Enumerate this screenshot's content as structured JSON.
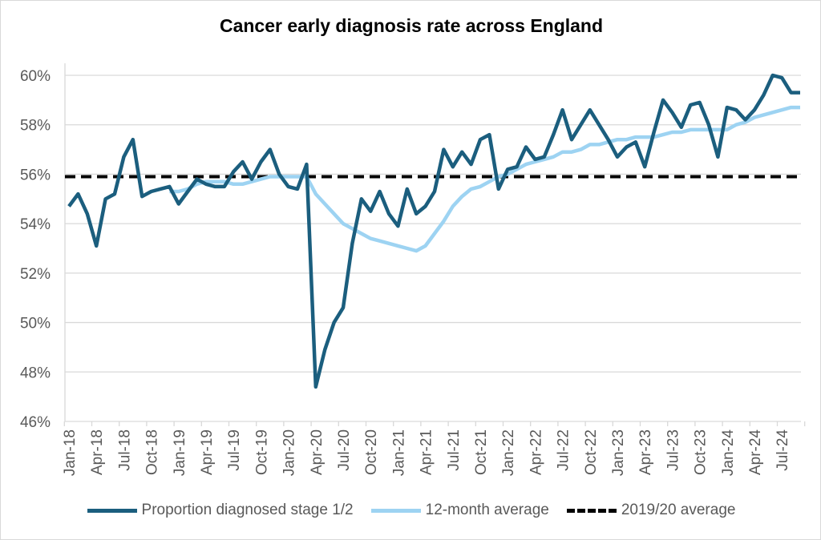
{
  "chart_data": {
    "type": "line",
    "title": "Cancer early diagnosis rate across England",
    "xlabel": "",
    "ylabel": "",
    "ylim": [
      46,
      60
    ],
    "yticks": [
      "46%",
      "48%",
      "50%",
      "52%",
      "54%",
      "56%",
      "58%",
      "60%"
    ],
    "ytick_values": [
      46,
      48,
      50,
      52,
      54,
      56,
      58,
      60
    ],
    "grid": true,
    "legend_position": "bottom",
    "x": [
      "Jan-18",
      "Feb-18",
      "Mar-18",
      "Apr-18",
      "May-18",
      "Jun-18",
      "Jul-18",
      "Aug-18",
      "Sep-18",
      "Oct-18",
      "Nov-18",
      "Dec-18",
      "Jan-19",
      "Feb-19",
      "Mar-19",
      "Apr-19",
      "May-19",
      "Jun-19",
      "Jul-19",
      "Aug-19",
      "Sep-19",
      "Oct-19",
      "Nov-19",
      "Dec-19",
      "Jan-20",
      "Feb-20",
      "Mar-20",
      "Apr-20",
      "May-20",
      "Jun-20",
      "Jul-20",
      "Aug-20",
      "Sep-20",
      "Oct-20",
      "Nov-20",
      "Dec-20",
      "Jan-21",
      "Feb-21",
      "Mar-21",
      "Apr-21",
      "May-21",
      "Jun-21",
      "Jul-21",
      "Aug-21",
      "Sep-21",
      "Oct-21",
      "Nov-21",
      "Dec-21",
      "Jan-22",
      "Feb-22",
      "Mar-22",
      "Apr-22",
      "May-22",
      "Jun-22",
      "Jul-22",
      "Aug-22",
      "Sep-22",
      "Oct-22",
      "Nov-22",
      "Dec-22",
      "Jan-23",
      "Feb-23",
      "Mar-23",
      "Apr-23",
      "May-23",
      "Jun-23",
      "Jul-23",
      "Aug-23",
      "Sep-23",
      "Oct-23",
      "Nov-23",
      "Dec-23",
      "Jan-24",
      "Feb-24",
      "Mar-24",
      "Apr-24",
      "May-24",
      "Jun-24",
      "Jul-24",
      "Aug-24",
      "Sep-24"
    ],
    "xtick_labels": [
      "Jan-18",
      "Apr-18",
      "Jul-18",
      "Oct-18",
      "Jan-19",
      "Apr-19",
      "Jul-19",
      "Oct-19",
      "Jan-20",
      "Apr-20",
      "Jul-20",
      "Oct-20",
      "Jan-21",
      "Apr-21",
      "Jul-21",
      "Oct-21",
      "Jan-22",
      "Apr-22",
      "Jul-22",
      "Oct-22",
      "Jan-23",
      "Apr-23",
      "Jul-23",
      "Oct-23",
      "Jan-24",
      "Apr-24",
      "Jul-24"
    ],
    "series": [
      {
        "name": "Proportion diagnosed stage 1/2",
        "color": "#1b5e7e",
        "dash": false,
        "values": [
          54.7,
          55.2,
          54.4,
          53.1,
          55.0,
          55.2,
          56.7,
          57.4,
          55.1,
          55.3,
          55.4,
          55.5,
          54.8,
          55.3,
          55.8,
          55.6,
          55.5,
          55.5,
          56.1,
          56.5,
          55.8,
          56.5,
          57.0,
          56.0,
          55.5,
          55.4,
          56.4,
          47.4,
          48.9,
          50.0,
          50.6,
          53.2,
          55.0,
          54.5,
          55.3,
          54.4,
          53.9,
          55.4,
          54.4,
          54.7,
          55.3,
          57.0,
          56.3,
          56.9,
          56.4,
          57.4,
          57.6,
          55.4,
          56.2,
          56.3,
          57.1,
          56.6,
          56.7,
          57.6,
          58.6,
          57.4,
          58.0,
          58.6,
          58.0,
          57.4,
          56.7,
          57.1,
          57.3,
          56.3,
          57.7,
          59.0,
          58.5,
          57.9,
          58.8,
          58.9,
          58.0,
          56.7,
          58.7,
          58.6,
          58.2,
          58.6,
          59.2,
          60.0,
          59.9,
          59.3,
          59.3
        ]
      },
      {
        "name": "12-month average",
        "color": "#9dd3f2",
        "dash": false,
        "values": [
          null,
          null,
          null,
          null,
          null,
          null,
          null,
          null,
          null,
          null,
          null,
          55.3,
          55.3,
          55.4,
          55.6,
          55.7,
          55.7,
          55.7,
          55.6,
          55.6,
          55.7,
          55.8,
          55.9,
          55.9,
          55.9,
          55.9,
          55.9,
          55.2,
          54.8,
          54.4,
          54.0,
          53.8,
          53.6,
          53.4,
          53.3,
          53.2,
          53.1,
          53.0,
          52.9,
          53.1,
          53.6,
          54.1,
          54.7,
          55.1,
          55.4,
          55.5,
          55.7,
          55.9,
          56.0,
          56.2,
          56.4,
          56.5,
          56.6,
          56.7,
          56.9,
          56.9,
          57.0,
          57.2,
          57.2,
          57.3,
          57.4,
          57.4,
          57.5,
          57.5,
          57.5,
          57.6,
          57.7,
          57.7,
          57.8,
          57.8,
          57.8,
          57.8,
          57.8,
          58.0,
          58.1,
          58.3,
          58.4,
          58.5,
          58.6,
          58.7,
          58.7
        ]
      },
      {
        "name": "2019/20 average",
        "color": "#000000",
        "dash": true,
        "constant": 55.9
      }
    ]
  }
}
